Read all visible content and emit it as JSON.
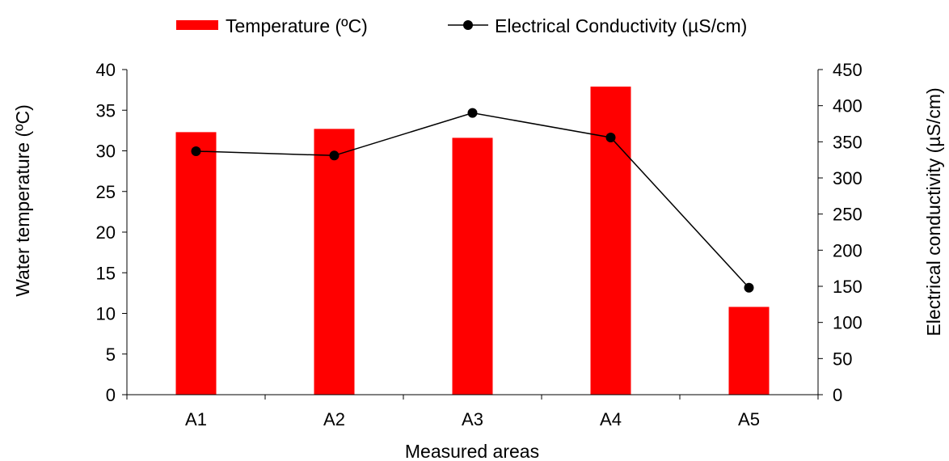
{
  "chart_data": {
    "type": "bar",
    "title": "",
    "xlabel": "Measured areas",
    "ylabel": "Water temperature (ºC)",
    "y2label": "Electrical conductivity (µS/cm)",
    "categories": [
      "A1",
      "A2",
      "A3",
      "A4",
      "A5"
    ],
    "ylim": [
      0,
      40
    ],
    "y2lim": [
      0,
      450
    ],
    "yticks": [
      "0",
      "5",
      "10",
      "15",
      "20",
      "25",
      "30",
      "35",
      "40"
    ],
    "y2ticks": [
      "0",
      "50",
      "100",
      "150",
      "200",
      "250",
      "300",
      "350",
      "400",
      "450"
    ],
    "grid": false,
    "legend_position": "top",
    "series": [
      {
        "name": "Temperature (ºC)",
        "type": "bar",
        "axis": "left",
        "color": "#ff0000",
        "values": [
          32.3,
          32.7,
          31.6,
          37.9,
          10.8
        ]
      },
      {
        "name": "Electrical Conductivity (µS/cm)",
        "type": "line",
        "axis": "right",
        "color": "#000000",
        "values": [
          337,
          331,
          390,
          356,
          148
        ]
      }
    ]
  }
}
